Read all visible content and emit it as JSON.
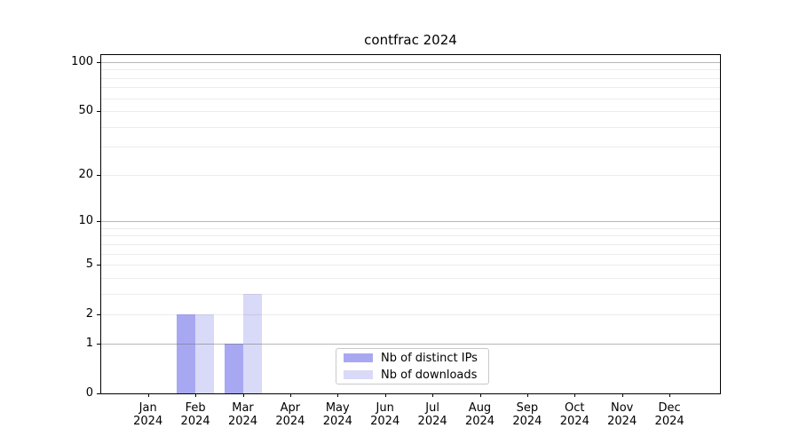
{
  "chart_data": {
    "type": "bar",
    "title": "contfrac 2024",
    "yscale": "log1p",
    "ylim": [
      0,
      110.4
    ],
    "grid": true,
    "legend_position": "lower center",
    "months": [
      {
        "month": "Jan",
        "year": "2024"
      },
      {
        "month": "Feb",
        "year": "2024"
      },
      {
        "month": "Mar",
        "year": "2024"
      },
      {
        "month": "Apr",
        "year": "2024"
      },
      {
        "month": "May",
        "year": "2024"
      },
      {
        "month": "Jun",
        "year": "2024"
      },
      {
        "month": "Jul",
        "year": "2024"
      },
      {
        "month": "Aug",
        "year": "2024"
      },
      {
        "month": "Sep",
        "year": "2024"
      },
      {
        "month": "Oct",
        "year": "2024"
      },
      {
        "month": "Nov",
        "year": "2024"
      },
      {
        "month": "Dec",
        "year": "2024"
      }
    ],
    "series": [
      {
        "name": "Nb of distinct IPs",
        "color": "#a8a8f2",
        "values": [
          0,
          2,
          1,
          0,
          0,
          0,
          0,
          0,
          0,
          0,
          0,
          0
        ]
      },
      {
        "name": "Nb of downloads",
        "color": "#d9d9f8",
        "values": [
          0,
          2,
          3,
          0,
          0,
          0,
          0,
          0,
          0,
          0,
          0,
          0
        ]
      }
    ],
    "yticks": [
      0,
      1,
      2,
      5,
      10,
      20,
      50,
      100
    ],
    "ytick_labels": [
      "0",
      "1",
      "2",
      "5",
      "10",
      "20",
      "50",
      "100"
    ],
    "gridlines": {
      "major": [
        1,
        10,
        100
      ],
      "minor": [
        2,
        3,
        4,
        5,
        6,
        7,
        8,
        9,
        20,
        30,
        40,
        50,
        60,
        70,
        80,
        90
      ]
    }
  }
}
